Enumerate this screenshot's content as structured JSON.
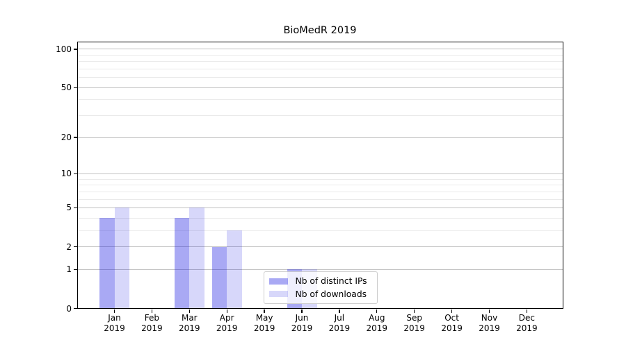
{
  "chart_data": {
    "type": "bar",
    "title": "BioMedR 2019",
    "categories": [
      "Jan 2019",
      "Feb 2019",
      "Mar 2019",
      "Apr 2019",
      "May 2019",
      "Jun 2019",
      "Jul 2019",
      "Aug 2019",
      "Sep 2019",
      "Oct 2019",
      "Nov 2019",
      "Dec 2019"
    ],
    "series": [
      {
        "name": "Nb of distinct IPs",
        "values": [
          4,
          0,
          4,
          2,
          0,
          1,
          0,
          0,
          0,
          0,
          0,
          0
        ],
        "color": "rgba(2,2,222,0.34)"
      },
      {
        "name": "Nb of downloads",
        "values": [
          5,
          0,
          5,
          3,
          0,
          1,
          0,
          0,
          0,
          0,
          0,
          0
        ],
        "color": "rgba(2,2,222,0.155)"
      }
    ],
    "xlabel": "",
    "ylabel": "",
    "yscale": "log1p",
    "y_ticks": [
      0,
      1,
      2,
      5,
      10,
      20,
      50,
      100
    ],
    "y_minor_ticks": [
      3,
      4,
      6,
      7,
      8,
      9,
      30,
      40,
      60,
      70,
      80,
      90
    ],
    "ylim": [
      0,
      115
    ],
    "grid": true,
    "legend_position": "lower-center"
  },
  "colors": {
    "bar_distinct_ips": "rgba(2,2,222,0.34)",
    "bar_downloads": "rgba(2,2,222,0.155)",
    "major_grid": "#c2c2c2",
    "minor_grid": "#eaeaea",
    "spine": "#000000",
    "legend_border": "#cccccc"
  }
}
